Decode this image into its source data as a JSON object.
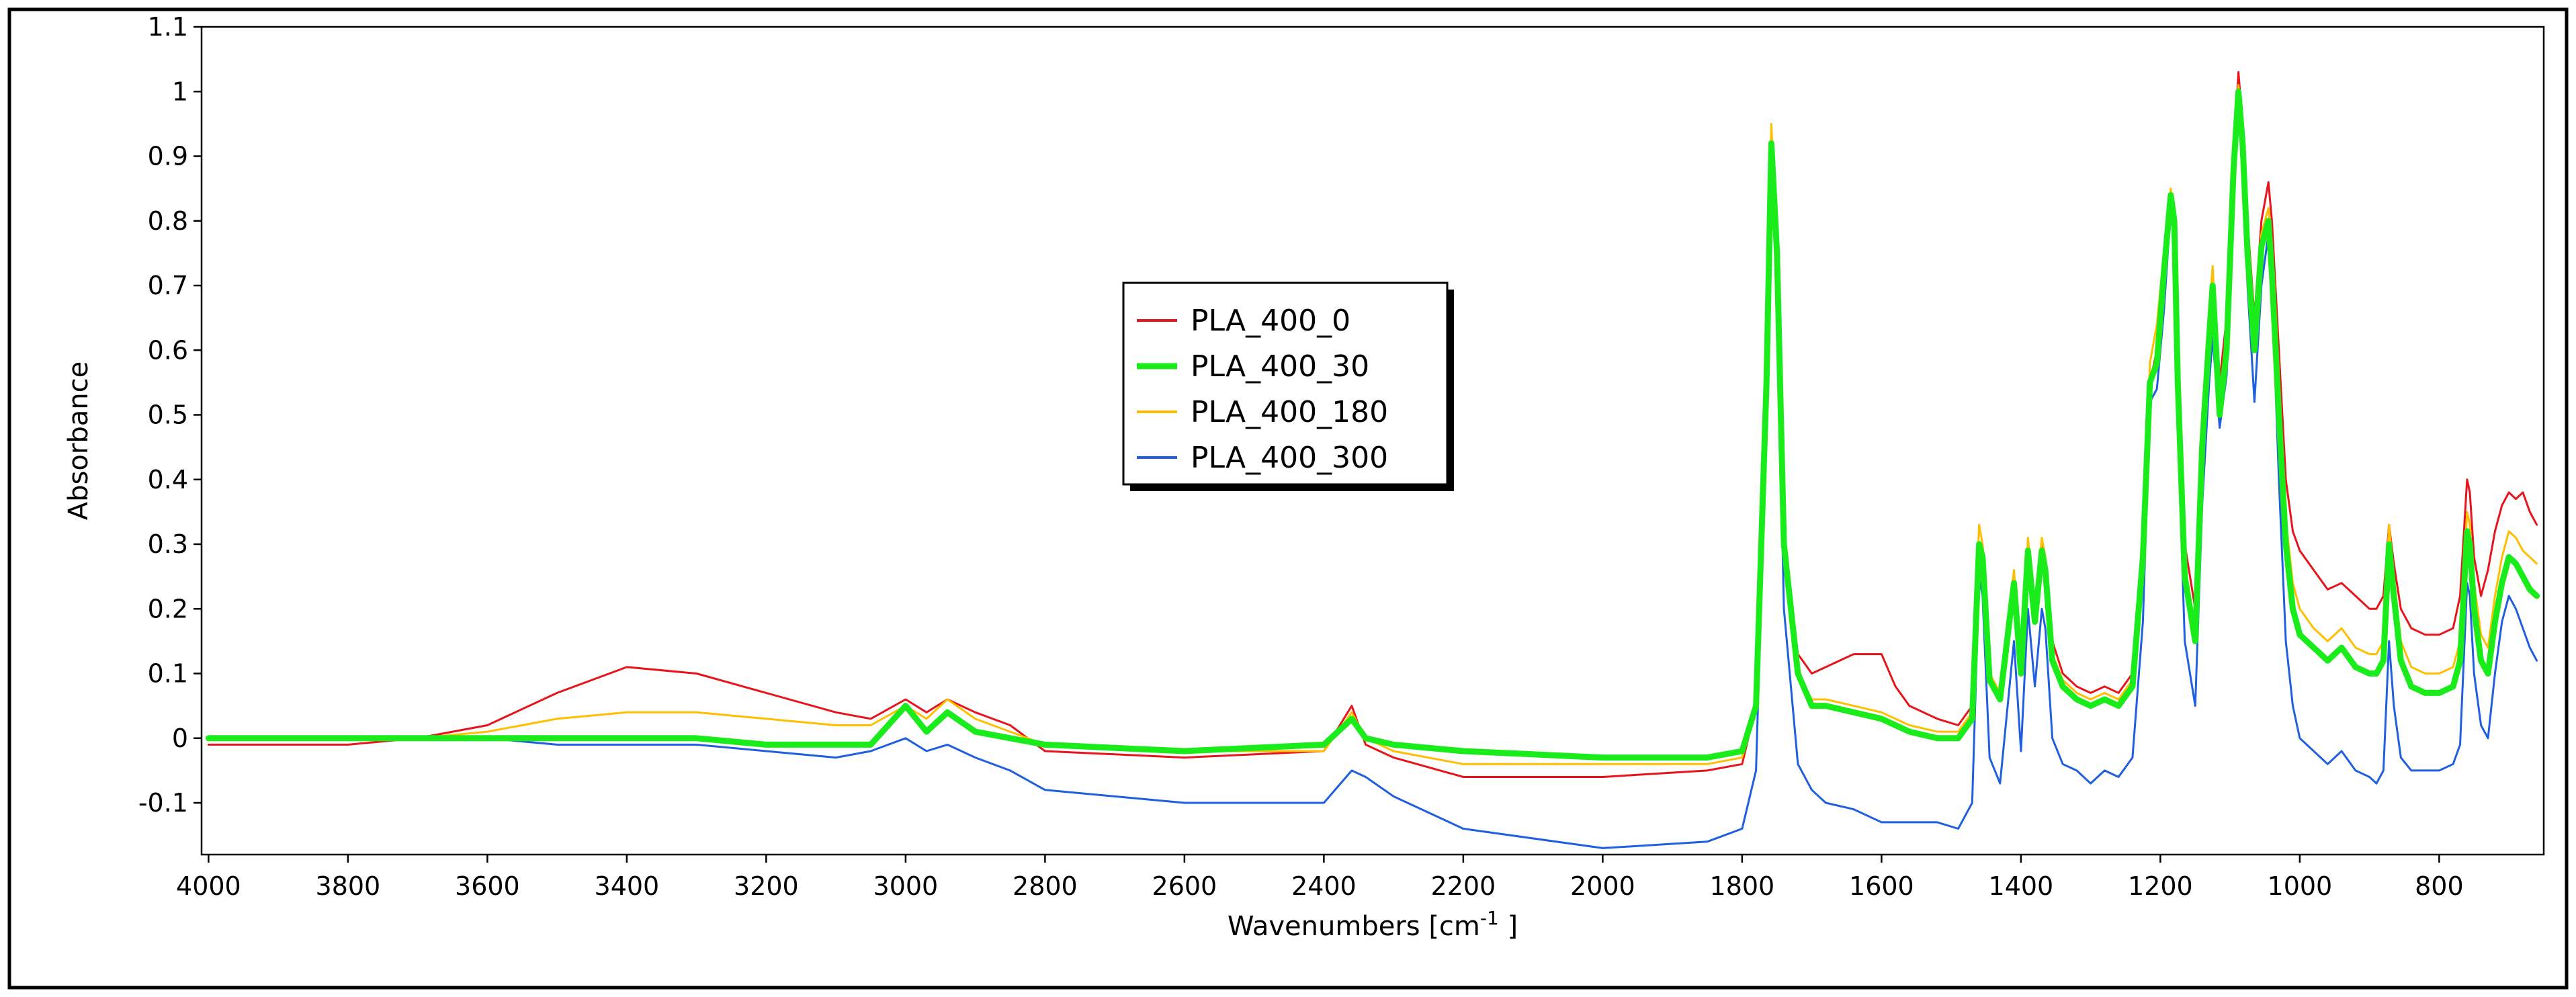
{
  "chart_data": {
    "type": "line",
    "title": "",
    "xlabel": "Wavenumbers [cm",
    "xlabel_sup": "-1",
    "xlabel_suffix": " ]",
    "ylabel": "Absorbance",
    "xlim": [
      4010,
      650
    ],
    "ylim": [
      -0.18,
      1.1
    ],
    "xticks": [
      4000,
      3800,
      3600,
      3400,
      3200,
      3000,
      2800,
      2600,
      2400,
      2200,
      2000,
      1800,
      1600,
      1400,
      1200,
      1000,
      800
    ],
    "yticks": [
      -0.1,
      0,
      0.1,
      0.2,
      0.3,
      0.4,
      0.5,
      0.6,
      0.7,
      0.8,
      0.9,
      1,
      1.1
    ],
    "ytick_labels": [
      "-0.1",
      "0",
      "0.1",
      "0.2",
      "0.3",
      "0.4",
      "0.5",
      "0.6",
      "0.7",
      "0.8",
      "0.9",
      "1",
      "1.1"
    ],
    "grid": false,
    "legend_position": "upper-center",
    "series": [
      {
        "name": "PLA_400_0",
        "color": "#e8141b",
        "x": [
          4000,
          3800,
          3700,
          3600,
          3500,
          3400,
          3300,
          3200,
          3100,
          3050,
          3000,
          2970,
          2940,
          2900,
          2850,
          2800,
          2600,
          2400,
          2360,
          2340,
          2300,
          2200,
          2000,
          1850,
          1800,
          1780,
          1765,
          1758,
          1750,
          1740,
          1720,
          1700,
          1680,
          1640,
          1600,
          1580,
          1560,
          1520,
          1490,
          1470,
          1460,
          1455,
          1445,
          1430,
          1410,
          1400,
          1390,
          1380,
          1370,
          1365,
          1355,
          1340,
          1320,
          1300,
          1280,
          1260,
          1240,
          1225,
          1215,
          1205,
          1195,
          1185,
          1180,
          1175,
          1165,
          1150,
          1140,
          1130,
          1125,
          1115,
          1105,
          1095,
          1088,
          1082,
          1075,
          1065,
          1055,
          1045,
          1040,
          1030,
          1020,
          1010,
          1000,
          980,
          960,
          940,
          920,
          900,
          890,
          880,
          872,
          865,
          855,
          840,
          820,
          800,
          780,
          770,
          760,
          756,
          750,
          740,
          730,
          720,
          710,
          700,
          690,
          680,
          670,
          660
        ],
        "values": [
          -0.01,
          -0.01,
          0.0,
          0.02,
          0.07,
          0.11,
          0.1,
          0.07,
          0.04,
          0.03,
          0.06,
          0.04,
          0.06,
          0.04,
          0.02,
          -0.02,
          -0.03,
          -0.02,
          0.05,
          -0.01,
          -0.03,
          -0.06,
          -0.06,
          -0.05,
          -0.04,
          0.05,
          0.55,
          0.92,
          0.75,
          0.3,
          0.13,
          0.1,
          0.11,
          0.13,
          0.13,
          0.08,
          0.05,
          0.03,
          0.02,
          0.05,
          0.3,
          0.3,
          0.1,
          0.07,
          0.25,
          0.12,
          0.3,
          0.2,
          0.3,
          0.27,
          0.15,
          0.1,
          0.08,
          0.07,
          0.08,
          0.07,
          0.1,
          0.3,
          0.55,
          0.6,
          0.75,
          0.83,
          0.8,
          0.55,
          0.3,
          0.2,
          0.5,
          0.65,
          0.72,
          0.55,
          0.65,
          0.9,
          1.03,
          0.95,
          0.8,
          0.65,
          0.8,
          0.86,
          0.8,
          0.6,
          0.4,
          0.32,
          0.29,
          0.26,
          0.23,
          0.24,
          0.22,
          0.2,
          0.2,
          0.22,
          0.33,
          0.27,
          0.2,
          0.17,
          0.16,
          0.16,
          0.17,
          0.22,
          0.4,
          0.38,
          0.28,
          0.22,
          0.26,
          0.32,
          0.36,
          0.38,
          0.37,
          0.38,
          0.35,
          0.33
        ]
      },
      {
        "name": "PLA_400_30",
        "color": "#1aeb1a",
        "x": [
          4000,
          3800,
          3700,
          3600,
          3500,
          3400,
          3300,
          3200,
          3100,
          3050,
          3000,
          2970,
          2940,
          2900,
          2850,
          2800,
          2600,
          2400,
          2360,
          2340,
          2300,
          2200,
          2000,
          1850,
          1800,
          1780,
          1765,
          1758,
          1750,
          1740,
          1720,
          1700,
          1680,
          1640,
          1600,
          1580,
          1560,
          1520,
          1490,
          1470,
          1460,
          1455,
          1445,
          1430,
          1410,
          1400,
          1390,
          1380,
          1370,
          1365,
          1355,
          1340,
          1320,
          1300,
          1280,
          1260,
          1240,
          1225,
          1215,
          1205,
          1195,
          1185,
          1180,
          1175,
          1165,
          1150,
          1140,
          1130,
          1125,
          1115,
          1105,
          1095,
          1088,
          1082,
          1075,
          1065,
          1055,
          1045,
          1040,
          1030,
          1020,
          1010,
          1000,
          980,
          960,
          940,
          920,
          900,
          890,
          880,
          872,
          865,
          855,
          840,
          820,
          800,
          780,
          770,
          760,
          756,
          750,
          740,
          730,
          720,
          710,
          700,
          690,
          680,
          670,
          660
        ],
        "values": [
          0.0,
          0.0,
          0.0,
          0.0,
          0.0,
          0.0,
          0.0,
          -0.01,
          -0.01,
          -0.01,
          0.05,
          0.01,
          0.04,
          0.01,
          0.0,
          -0.01,
          -0.02,
          -0.01,
          0.03,
          0.0,
          -0.01,
          -0.02,
          -0.03,
          -0.03,
          -0.02,
          0.05,
          0.55,
          0.92,
          0.75,
          0.3,
          0.1,
          0.05,
          0.05,
          0.04,
          0.03,
          0.02,
          0.01,
          0.0,
          0.0,
          0.03,
          0.3,
          0.28,
          0.09,
          0.06,
          0.24,
          0.1,
          0.29,
          0.18,
          0.29,
          0.26,
          0.12,
          0.08,
          0.06,
          0.05,
          0.06,
          0.05,
          0.08,
          0.28,
          0.55,
          0.58,
          0.72,
          0.84,
          0.8,
          0.55,
          0.25,
          0.15,
          0.45,
          0.62,
          0.7,
          0.5,
          0.6,
          0.88,
          1.0,
          0.92,
          0.75,
          0.6,
          0.76,
          0.8,
          0.72,
          0.5,
          0.3,
          0.2,
          0.16,
          0.14,
          0.12,
          0.14,
          0.11,
          0.1,
          0.1,
          0.12,
          0.3,
          0.22,
          0.12,
          0.08,
          0.07,
          0.07,
          0.08,
          0.12,
          0.32,
          0.3,
          0.2,
          0.12,
          0.1,
          0.18,
          0.24,
          0.28,
          0.27,
          0.25,
          0.23,
          0.22
        ]
      },
      {
        "name": "PLA_400_180",
        "color": "#ffbf00",
        "x": [
          4000,
          3800,
          3700,
          3600,
          3500,
          3400,
          3300,
          3200,
          3100,
          3050,
          3000,
          2970,
          2940,
          2900,
          2850,
          2800,
          2600,
          2400,
          2360,
          2340,
          2300,
          2200,
          2000,
          1850,
          1800,
          1780,
          1765,
          1758,
          1750,
          1740,
          1720,
          1700,
          1680,
          1640,
          1600,
          1580,
          1560,
          1520,
          1490,
          1470,
          1460,
          1455,
          1445,
          1430,
          1410,
          1400,
          1390,
          1380,
          1370,
          1365,
          1355,
          1340,
          1320,
          1300,
          1280,
          1260,
          1240,
          1225,
          1215,
          1205,
          1195,
          1185,
          1180,
          1175,
          1165,
          1150,
          1140,
          1130,
          1125,
          1115,
          1105,
          1095,
          1088,
          1082,
          1075,
          1065,
          1055,
          1045,
          1040,
          1030,
          1020,
          1010,
          1000,
          980,
          960,
          940,
          920,
          900,
          890,
          880,
          872,
          865,
          855,
          840,
          820,
          800,
          780,
          770,
          760,
          756,
          750,
          740,
          730,
          720,
          710,
          700,
          690,
          680,
          670,
          660
        ],
        "values": [
          0.0,
          0.0,
          0.0,
          0.01,
          0.03,
          0.04,
          0.04,
          0.03,
          0.02,
          0.02,
          0.05,
          0.03,
          0.06,
          0.03,
          0.01,
          -0.01,
          -0.02,
          -0.02,
          0.04,
          0.0,
          -0.02,
          -0.04,
          -0.04,
          -0.04,
          -0.03,
          0.05,
          0.56,
          0.95,
          0.76,
          0.3,
          0.1,
          0.06,
          0.06,
          0.05,
          0.04,
          0.03,
          0.02,
          0.01,
          0.01,
          0.04,
          0.33,
          0.3,
          0.1,
          0.07,
          0.26,
          0.11,
          0.31,
          0.2,
          0.31,
          0.28,
          0.13,
          0.09,
          0.07,
          0.06,
          0.07,
          0.06,
          0.09,
          0.3,
          0.58,
          0.64,
          0.75,
          0.85,
          0.8,
          0.56,
          0.27,
          0.17,
          0.48,
          0.66,
          0.73,
          0.52,
          0.62,
          0.9,
          1.01,
          0.94,
          0.78,
          0.62,
          0.78,
          0.82,
          0.76,
          0.55,
          0.34,
          0.24,
          0.2,
          0.17,
          0.15,
          0.17,
          0.14,
          0.13,
          0.13,
          0.15,
          0.33,
          0.25,
          0.15,
          0.11,
          0.1,
          0.1,
          0.11,
          0.15,
          0.35,
          0.33,
          0.24,
          0.16,
          0.14,
          0.22,
          0.28,
          0.32,
          0.31,
          0.29,
          0.28,
          0.27
        ]
      },
      {
        "name": "PLA_400_300",
        "color": "#1f5fe0",
        "x": [
          4000,
          3800,
          3700,
          3600,
          3500,
          3400,
          3300,
          3200,
          3100,
          3050,
          3000,
          2970,
          2940,
          2900,
          2850,
          2800,
          2600,
          2400,
          2360,
          2340,
          2300,
          2200,
          2000,
          1850,
          1800,
          1780,
          1765,
          1758,
          1750,
          1740,
          1720,
          1700,
          1680,
          1640,
          1600,
          1580,
          1560,
          1520,
          1490,
          1470,
          1460,
          1455,
          1445,
          1430,
          1410,
          1400,
          1390,
          1380,
          1370,
          1365,
          1355,
          1340,
          1320,
          1300,
          1280,
          1260,
          1240,
          1225,
          1215,
          1205,
          1195,
          1185,
          1180,
          1175,
          1165,
          1150,
          1140,
          1130,
          1125,
          1115,
          1105,
          1095,
          1088,
          1082,
          1075,
          1065,
          1055,
          1045,
          1040,
          1030,
          1020,
          1010,
          1000,
          980,
          960,
          940,
          920,
          900,
          890,
          880,
          872,
          865,
          855,
          840,
          820,
          800,
          780,
          770,
          760,
          756,
          750,
          740,
          730,
          720,
          710,
          700,
          690,
          680,
          670,
          660
        ],
        "values": [
          0.0,
          0.0,
          0.0,
          0.0,
          -0.01,
          -0.01,
          -0.01,
          -0.02,
          -0.03,
          -0.02,
          0.0,
          -0.02,
          -0.01,
          -0.03,
          -0.05,
          -0.08,
          -0.1,
          -0.1,
          -0.05,
          -0.06,
          -0.09,
          -0.14,
          -0.17,
          -0.16,
          -0.14,
          -0.05,
          0.5,
          0.92,
          0.7,
          0.2,
          -0.04,
          -0.08,
          -0.1,
          -0.11,
          -0.13,
          -0.13,
          -0.13,
          -0.13,
          -0.14,
          -0.1,
          0.25,
          0.22,
          -0.03,
          -0.07,
          0.15,
          -0.02,
          0.2,
          0.08,
          0.2,
          0.17,
          0.0,
          -0.04,
          -0.05,
          -0.07,
          -0.05,
          -0.06,
          -0.03,
          0.18,
          0.52,
          0.54,
          0.66,
          0.82,
          0.76,
          0.48,
          0.15,
          0.05,
          0.36,
          0.55,
          0.62,
          0.48,
          0.56,
          0.82,
          0.98,
          0.9,
          0.7,
          0.52,
          0.7,
          0.78,
          0.7,
          0.4,
          0.15,
          0.05,
          0.0,
          -0.02,
          -0.04,
          -0.02,
          -0.05,
          -0.06,
          -0.07,
          -0.05,
          0.15,
          0.05,
          -0.03,
          -0.05,
          -0.05,
          -0.05,
          -0.04,
          -0.01,
          0.24,
          0.22,
          0.1,
          0.02,
          0.0,
          0.1,
          0.18,
          0.22,
          0.2,
          0.17,
          0.14,
          0.12
        ]
      }
    ]
  }
}
